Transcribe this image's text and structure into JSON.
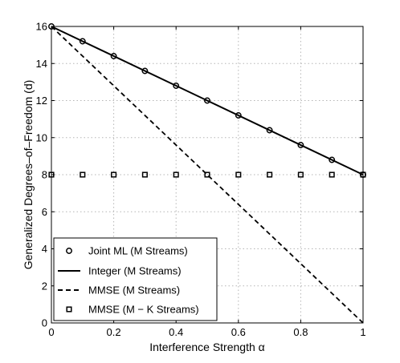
{
  "chart_data": {
    "type": "line",
    "title": "",
    "xlabel": "Interference Strength α",
    "ylabel": "Generalized Degrees–of–Freedom  (d)",
    "xlim": [
      0,
      1
    ],
    "ylim": [
      0,
      16
    ],
    "xticks": [
      "0",
      "0.2",
      "0.4",
      "0.6",
      "0.8",
      "1"
    ],
    "yticks": [
      "0",
      "2",
      "4",
      "6",
      "8",
      "10",
      "12",
      "14",
      "16"
    ],
    "grid": true,
    "legend_position": "bottom-left",
    "series": [
      {
        "name": "Joint ML (M Streams)",
        "style": "circle-markers",
        "color": "#000000",
        "x": [
          0,
          0.1,
          0.2,
          0.3,
          0.4,
          0.5,
          0.6,
          0.7,
          0.8,
          0.9,
          1.0
        ],
        "y": [
          16,
          15.2,
          14.4,
          13.6,
          12.8,
          12.0,
          11.2,
          10.4,
          9.6,
          8.8,
          8.0
        ]
      },
      {
        "name": "Integer (M Streams)",
        "style": "solid-line",
        "color": "#000000",
        "x": [
          0,
          1
        ],
        "y": [
          16,
          8
        ]
      },
      {
        "name": "MMSE (M Streams)",
        "style": "dashed-line",
        "color": "#000000",
        "x": [
          0,
          1
        ],
        "y": [
          16,
          0
        ]
      },
      {
        "name": "MMSE (M − K Streams)",
        "style": "square-markers",
        "color": "#000000",
        "x": [
          0,
          0.1,
          0.2,
          0.3,
          0.4,
          0.5,
          0.6,
          0.7,
          0.8,
          0.9,
          1.0
        ],
        "y": [
          8,
          8,
          8,
          8,
          8,
          8,
          8,
          8,
          8,
          8,
          8
        ]
      }
    ]
  }
}
